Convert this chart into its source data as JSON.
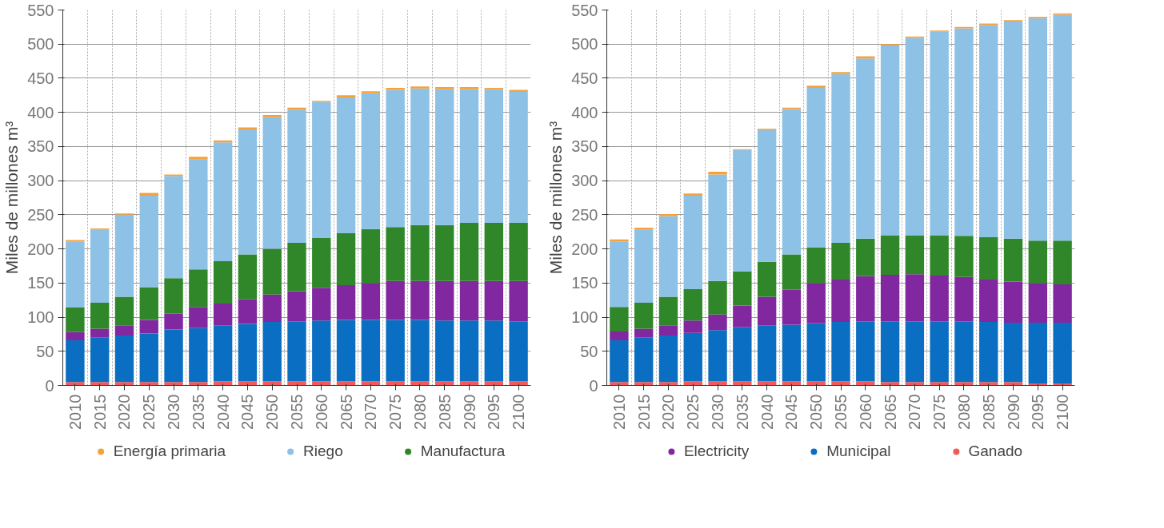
{
  "chart_data": [
    {
      "type": "bar",
      "stacked": true,
      "ylabel": "Miles de millones m³",
      "ylim": [
        0,
        550
      ],
      "yticks": [
        0,
        50,
        100,
        150,
        200,
        250,
        300,
        350,
        400,
        450,
        500,
        550
      ],
      "grid": true,
      "legend": "bottom",
      "categories": [
        "2010",
        "2015",
        "2020",
        "2025",
        "2030",
        "2035",
        "2040",
        "2045",
        "2050",
        "2055",
        "2060",
        "2065",
        "2070",
        "2075",
        "2080",
        "2085",
        "2090",
        "2095",
        "2100"
      ],
      "series": [
        {
          "color": "#f05a5a",
          "values": [
            5,
            5,
            5,
            5,
            5,
            5,
            6,
            6,
            6,
            6,
            6,
            6,
            6,
            6,
            6,
            6,
            6,
            6,
            6
          ]
        },
        {
          "color": "#0a6fc2",
          "values": [
            61,
            65,
            68,
            71,
            77,
            79,
            82,
            84,
            87,
            88,
            89,
            90,
            90,
            90,
            90,
            89,
            89,
            89,
            88
          ]
        },
        {
          "color": "#8128a0",
          "values": [
            12,
            13,
            15,
            20,
            23,
            31,
            32,
            36,
            40,
            44,
            48,
            51,
            54,
            57,
            57,
            58,
            58,
            58,
            59
          ]
        },
        {
          "name": "Manufactura",
          "color": "#2f8729",
          "values": [
            36,
            38,
            42,
            48,
            52,
            55,
            62,
            66,
            67,
            71,
            73,
            76,
            79,
            79,
            82,
            82,
            85,
            85,
            85
          ]
        },
        {
          "name": "Riego",
          "color": "#8dc1e6",
          "values": [
            97,
            107,
            120,
            134,
            150,
            161,
            174,
            183,
            193,
            195,
            199,
            199,
            199,
            201,
            200,
            199,
            196,
            196,
            192
          ]
        },
        {
          "name": "Energía primaria",
          "color": "#f7a13a",
          "values": [
            2,
            2,
            2,
            4,
            2,
            4,
            3,
            3,
            3,
            3,
            2,
            3,
            3,
            3,
            3,
            3,
            3,
            2,
            3
          ]
        }
      ]
    },
    {
      "type": "bar",
      "stacked": true,
      "ylabel": "Miles de millones m³",
      "ylim": [
        0,
        550
      ],
      "yticks": [
        0,
        50,
        100,
        150,
        200,
        250,
        300,
        350,
        400,
        450,
        500,
        550
      ],
      "grid": true,
      "legend": "bottom",
      "categories": [
        "2010",
        "2015",
        "2020",
        "2025",
        "2030",
        "2035",
        "2040",
        "2045",
        "2050",
        "2055",
        "2060",
        "2065",
        "2070",
        "2075",
        "2080",
        "2085",
        "2090",
        "2095",
        "2100"
      ],
      "series": [
        {
          "name": "Ganado",
          "color": "#f05a5a",
          "values": [
            5,
            5,
            5,
            6,
            6,
            6,
            6,
            6,
            6,
            6,
            6,
            5,
            5,
            5,
            5,
            5,
            5,
            3,
            3
          ]
        },
        {
          "name": "Municipal",
          "color": "#0a6fc2",
          "values": [
            61,
            65,
            68,
            71,
            75,
            79,
            82,
            83,
            85,
            87,
            88,
            89,
            89,
            89,
            89,
            88,
            87,
            89,
            89
          ]
        },
        {
          "name": "Electricity",
          "color": "#8128a0",
          "values": [
            13,
            13,
            15,
            18,
            23,
            32,
            42,
            51,
            59,
            62,
            66,
            68,
            69,
            67,
            65,
            62,
            60,
            58,
            56
          ]
        },
        {
          "color": "#2f8729",
          "values": [
            36,
            38,
            42,
            46,
            49,
            50,
            51,
            52,
            52,
            54,
            55,
            58,
            57,
            59,
            60,
            62,
            63,
            62,
            64
          ]
        },
        {
          "color": "#8dc1e6",
          "values": [
            96,
            107,
            118,
            137,
            156,
            178,
            193,
            213,
            234,
            247,
            264,
            278,
            289,
            298,
            304,
            311,
            318,
            326,
            331
          ]
        },
        {
          "color": "#f7a13a",
          "values": [
            3,
            3,
            3,
            3,
            4,
            1,
            2,
            2,
            3,
            3,
            3,
            2,
            2,
            2,
            2,
            2,
            2,
            2,
            2
          ]
        }
      ]
    }
  ]
}
